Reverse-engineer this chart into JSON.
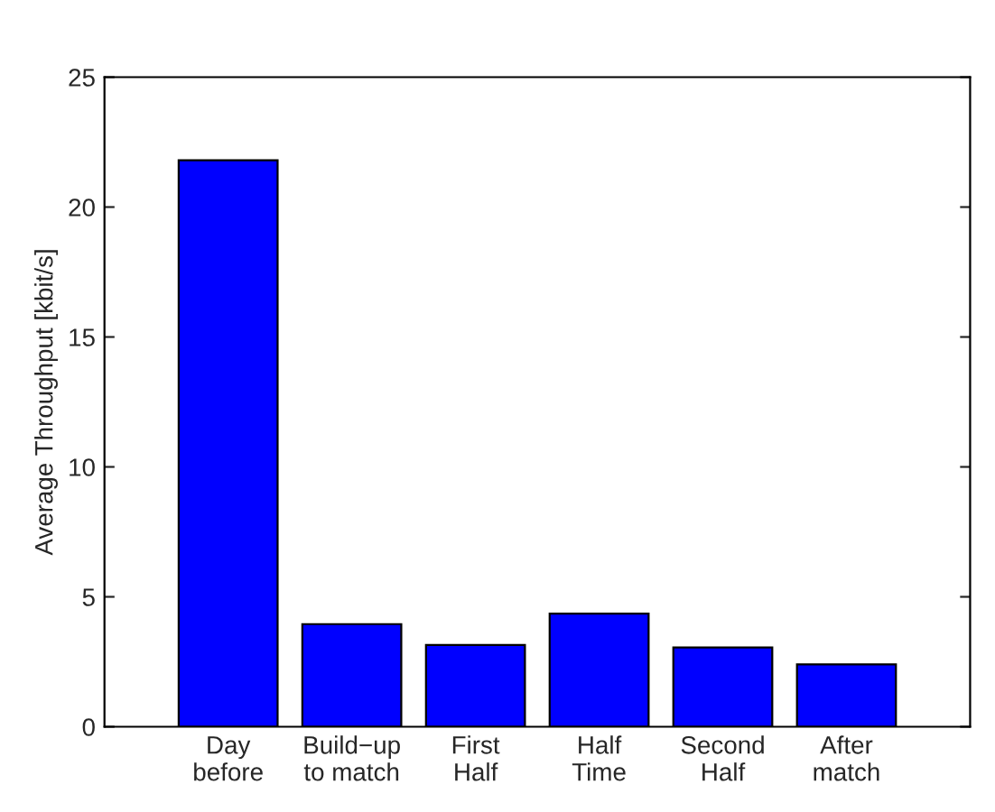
{
  "chart_data": {
    "type": "bar",
    "ylabel": "Average Throughput [kbit/s]",
    "categories": [
      "Day\nbefore",
      "Build−up\nto match",
      "First\nHalf",
      "Half\nTime",
      "Second\nHalf",
      "After\nmatch"
    ],
    "values": [
      21.8,
      3.95,
      3.15,
      4.35,
      3.05,
      2.4
    ],
    "color": "#0000ff",
    "ylim": [
      0,
      25
    ],
    "yticks": [
      0,
      5,
      10,
      15,
      20,
      25
    ],
    "grid": false
  }
}
